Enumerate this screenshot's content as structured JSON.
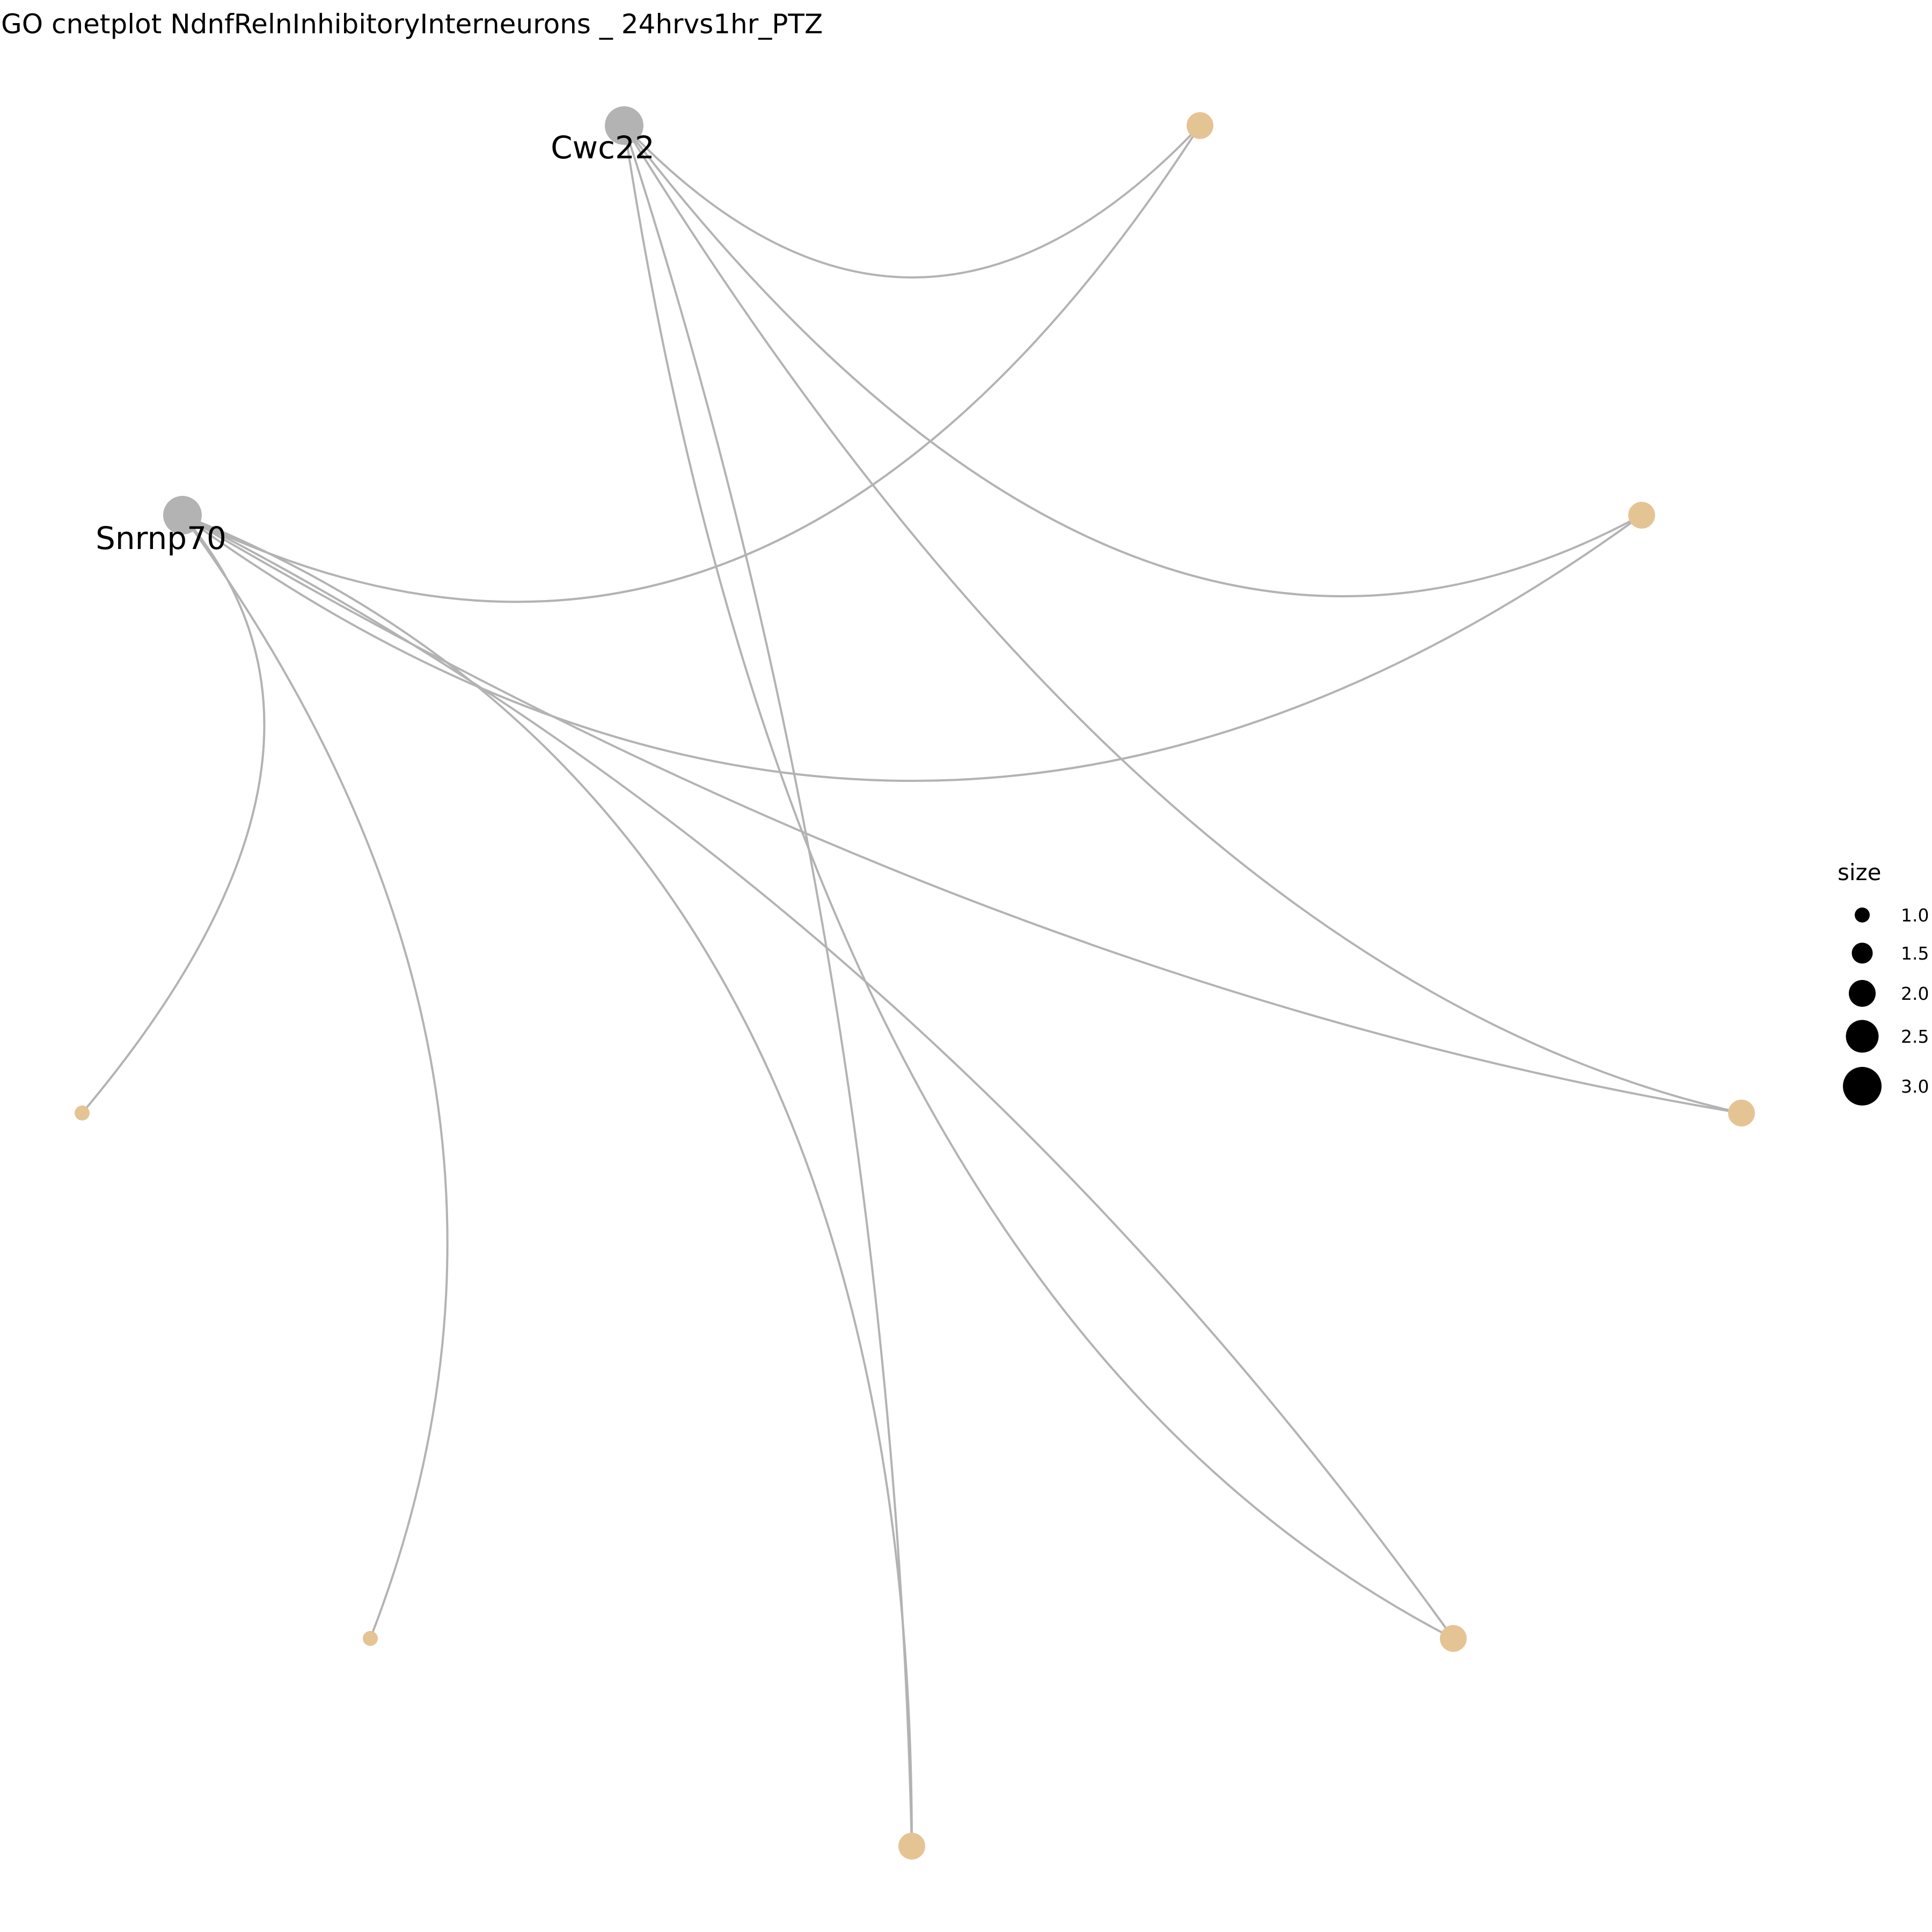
{
  "title": "GO cnetplot  NdnfRelnInhibitoryInterneurons _ 24hrvs1hr_PTZ",
  "colors": {
    "gene_node": "#b3b3b3",
    "category_node": "#e5c494",
    "edge": "#b3b3b3",
    "legend_dot": "#000000"
  },
  "nodes": [
    {
      "id": "Cwc22",
      "label": "Cwc22",
      "kind": "gene",
      "size": 3
    },
    {
      "id": "Snrnp70",
      "label": "Snrnp70",
      "kind": "gene",
      "size": 3
    },
    {
      "id": "c1",
      "label": "",
      "kind": "category",
      "size": 2
    },
    {
      "id": "c2",
      "label": "",
      "kind": "category",
      "size": 2
    },
    {
      "id": "c3",
      "label": "",
      "kind": "category",
      "size": 2
    },
    {
      "id": "c4",
      "label": "",
      "kind": "category",
      "size": 2
    },
    {
      "id": "c5",
      "label": "",
      "kind": "category",
      "size": 2
    },
    {
      "id": "c6",
      "label": "",
      "kind": "category",
      "size": 1
    },
    {
      "id": "c7",
      "label": "",
      "kind": "category",
      "size": 1
    }
  ],
  "edges": [
    {
      "from": "Cwc22",
      "to": "c1"
    },
    {
      "from": "Cwc22",
      "to": "c2"
    },
    {
      "from": "Cwc22",
      "to": "c3"
    },
    {
      "from": "Cwc22",
      "to": "c4"
    },
    {
      "from": "Cwc22",
      "to": "c5"
    },
    {
      "from": "Snrnp70",
      "to": "c1"
    },
    {
      "from": "Snrnp70",
      "to": "c2"
    },
    {
      "from": "Snrnp70",
      "to": "c3"
    },
    {
      "from": "Snrnp70",
      "to": "c4"
    },
    {
      "from": "Snrnp70",
      "to": "c5"
    },
    {
      "from": "Snrnp70",
      "to": "c6"
    },
    {
      "from": "Snrnp70",
      "to": "c7"
    }
  ],
  "legend": {
    "title": "size",
    "items": [
      {
        "label": "1.0",
        "size": 1.0
      },
      {
        "label": "1.5",
        "size": 1.5
      },
      {
        "label": "2.0",
        "size": 2.0
      },
      {
        "label": "2.5",
        "size": 2.5
      },
      {
        "label": "3.0",
        "size": 3.0
      }
    ]
  }
}
